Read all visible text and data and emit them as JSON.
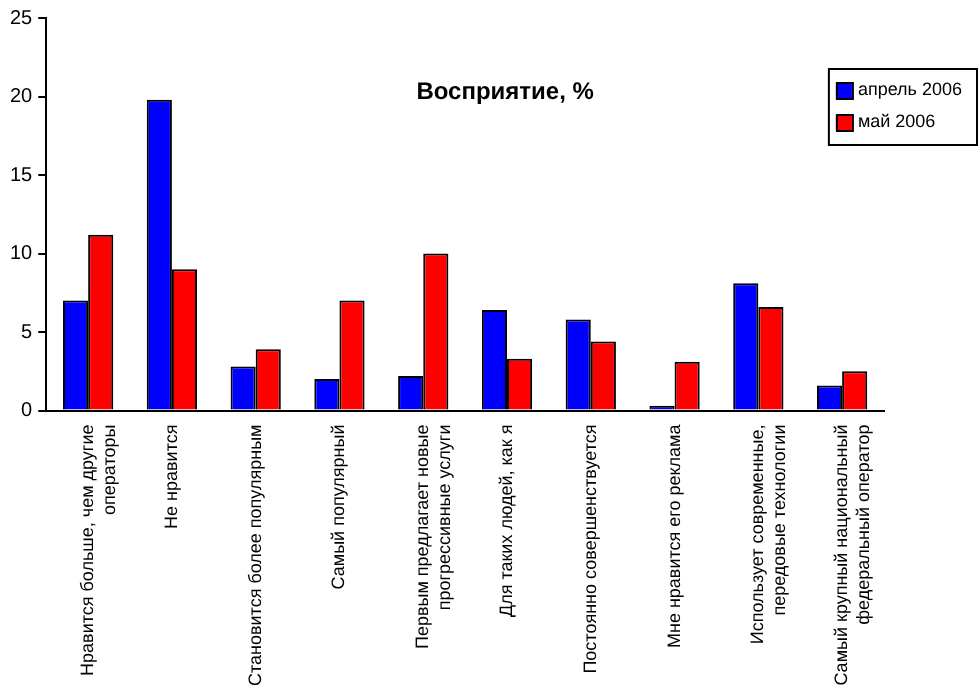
{
  "chart_data": {
    "type": "bar",
    "title": "Восприятие, %",
    "categories": [
      "Нравится больше, чем другие операторы",
      "Не нравится",
      "Становится более популярным",
      "Самый популярный",
      "Первым предлагает новые прогрессивные услуги",
      "Для таких людей, как я",
      "Постоянно совершенствуется",
      "Мне нравится его реклама",
      "Использует современные, передовые технологии",
      "Самый крупный национальный федеральный оператор"
    ],
    "series": [
      {
        "name": "апрель 2006",
        "color": "#0000ff",
        "values": [
          7.0,
          19.8,
          2.8,
          2.0,
          2.2,
          6.4,
          5.8,
          0.3,
          8.1,
          1.6
        ]
      },
      {
        "name": "май 2006",
        "color": "#ff0000",
        "values": [
          11.2,
          9.0,
          3.9,
          7.0,
          10.0,
          3.3,
          4.4,
          3.1,
          6.6,
          2.5
        ]
      }
    ],
    "ylim": [
      0,
      25
    ],
    "yticks": [
      0,
      5,
      10,
      15,
      20,
      25
    ],
    "grid": false,
    "legend": "top right"
  }
}
